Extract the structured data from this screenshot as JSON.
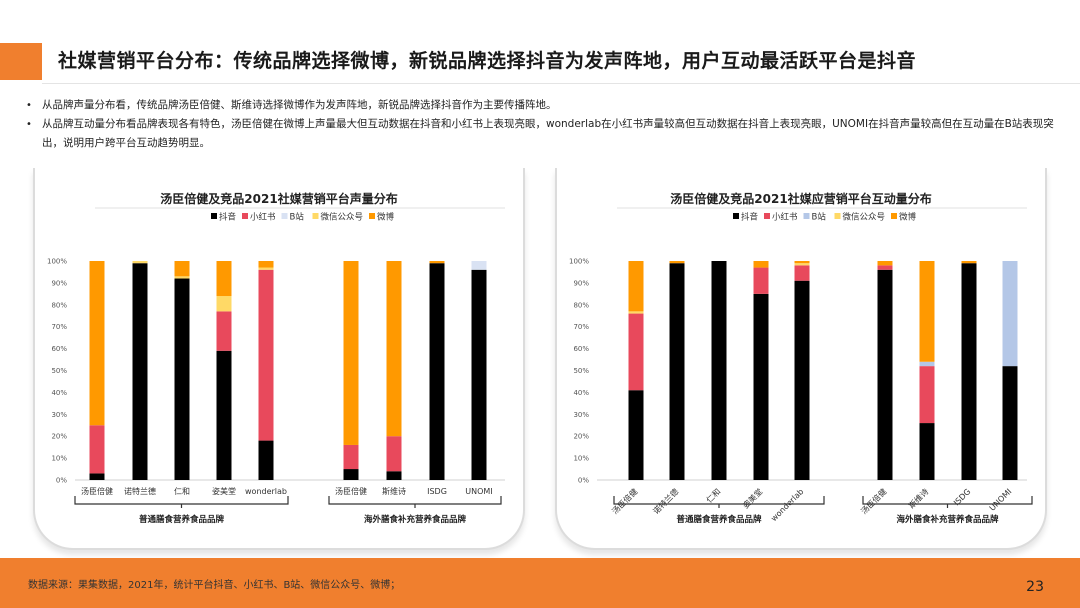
{
  "slide": {
    "title": "社媒营销平台分布：传统品牌选择微博，新锐品牌选择抖音为发声阵地，用户互动最活跃平台是抖音",
    "bullets": [
      "从品牌声量分布看，传统品牌汤臣倍健、斯维诗选择微博作为发声阵地，新锐品牌选择抖音作为主要传播阵地。",
      "从品牌互动量分布看品牌表现各有特色，汤臣倍健在微博上声量最大但互动数据在抖音和小红书上表现亮眼，wonderlab在小红书声量较高但互动数据在抖音上表现亮眼，UNOMI在抖音声量较高但在互动量在B站表现突出，说明用户跨平台互动趋势明显。"
    ],
    "footer": "数据来源：果集数据，2021年，统计平台抖音、小红书、B站、微信公众号、微博；",
    "page_number": "23",
    "bullet_mark": "•",
    "colors": {
      "accent": "#f07f2e"
    }
  },
  "legend_items": [
    "抖音",
    "小红书",
    "B站",
    "微信公众号",
    "微博"
  ],
  "chart_data": [
    {
      "type": "bar",
      "stacked": true,
      "title": "汤臣倍健及竞品2021社媒营销平台声量分布",
      "categories": [
        "汤臣倍健",
        "诺特兰德",
        "仁和",
        "姿美堂",
        "wonderlab",
        "汤臣倍健",
        "斯维诗",
        "ISDG",
        "UNOMI"
      ],
      "groups": [
        {
          "label": "普通膳食营养食品品牌",
          "members": [
            0,
            1,
            2,
            3,
            4
          ]
        },
        {
          "label": "海外膳食补充营养食品品牌",
          "members": [
            5,
            6,
            7,
            8
          ]
        }
      ],
      "series": [
        {
          "name": "抖音",
          "color": "#000000",
          "values": [
            3,
            99,
            92,
            59,
            18,
            5,
            4,
            99,
            96
          ]
        },
        {
          "name": "小红书",
          "color": "#e8495c",
          "values": [
            22,
            0,
            0,
            18,
            78,
            11,
            16,
            0,
            0
          ]
        },
        {
          "name": "B站",
          "color": "#d9e2f3",
          "values": [
            0,
            0,
            0,
            0,
            0,
            0,
            0,
            0,
            4
          ]
        },
        {
          "name": "微信公众号",
          "color": "#ffd966",
          "values": [
            0,
            1,
            1,
            7,
            1,
            0,
            0,
            0,
            0
          ]
        },
        {
          "name": "微博",
          "color": "#ff9900",
          "values": [
            75,
            0,
            7,
            16,
            3,
            84,
            80,
            1,
            0
          ]
        }
      ],
      "yticks": [
        "0%",
        "10%",
        "20%",
        "30%",
        "40%",
        "50%",
        "60%",
        "70%",
        "80%",
        "90%",
        "100%"
      ],
      "ylim": [
        0,
        100
      ],
      "legend": "top",
      "xlabel_rotated": false
    },
    {
      "type": "bar",
      "stacked": true,
      "title": "汤臣倍健及竞品2021社媒应营销平台互动量分布",
      "categories": [
        "汤臣倍健",
        "诺特兰德",
        "仁和",
        "姿美堂",
        "wonderlab",
        "汤臣倍健",
        "斯维诗",
        "ISDG",
        "UNOMI"
      ],
      "groups": [
        {
          "label": "普通膳食营养食品品牌",
          "members": [
            0,
            1,
            2,
            3,
            4
          ]
        },
        {
          "label": "海外膳食补充营养食品品牌",
          "members": [
            5,
            6,
            7,
            8
          ]
        }
      ],
      "series": [
        {
          "name": "抖音",
          "color": "#000000",
          "values": [
            41,
            99,
            100,
            85,
            91,
            96,
            26,
            99,
            52
          ]
        },
        {
          "name": "小红书",
          "color": "#e8495c",
          "values": [
            35,
            0,
            0,
            12,
            7,
            2,
            26,
            0,
            0
          ]
        },
        {
          "name": "B站",
          "color": "#b4c7e7",
          "values": [
            0,
            0,
            0,
            0,
            0,
            0,
            2,
            0,
            48
          ]
        },
        {
          "name": "微信公众号",
          "color": "#ffd966",
          "values": [
            1,
            0,
            0,
            0,
            1,
            0,
            0,
            0,
            0
          ]
        },
        {
          "name": "微博",
          "color": "#ff9900",
          "values": [
            23,
            1,
            0,
            3,
            1,
            2,
            46,
            1,
            0
          ]
        }
      ],
      "yticks": [
        "0%",
        "10%",
        "20%",
        "30%",
        "40%",
        "50%",
        "60%",
        "70%",
        "80%",
        "90%",
        "100%"
      ],
      "ylim": [
        0,
        100
      ],
      "legend": "top",
      "xlabel_rotated": true
    }
  ]
}
